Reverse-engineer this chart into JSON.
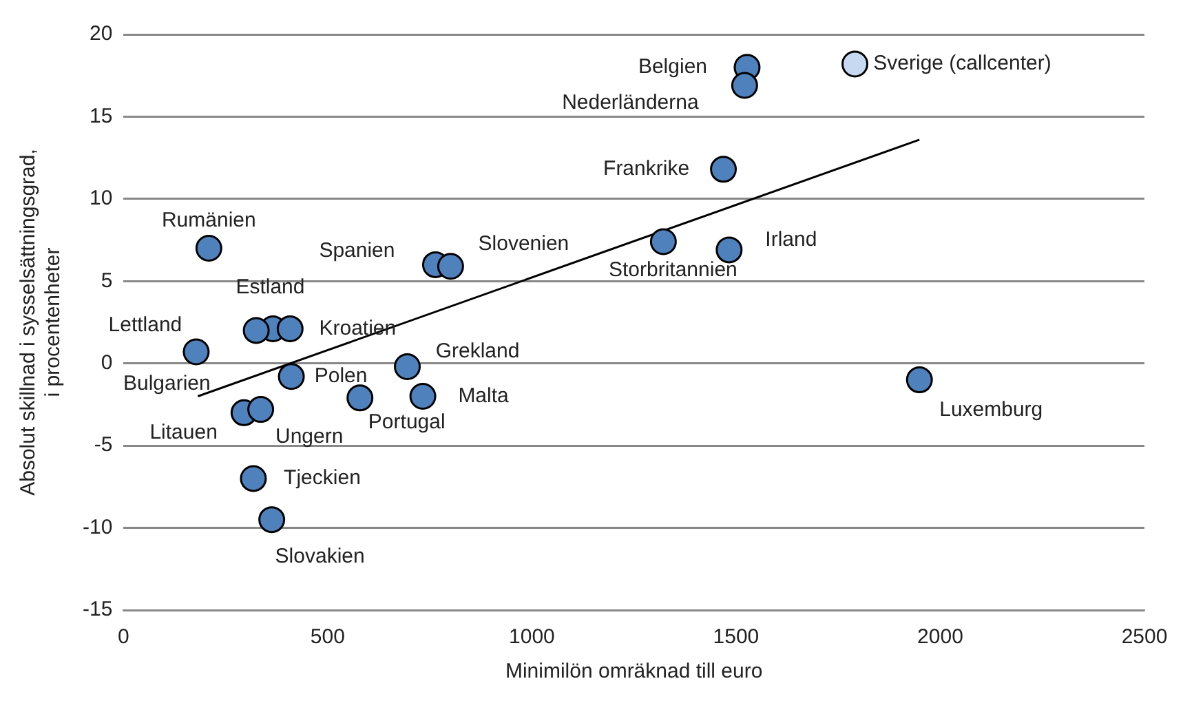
{
  "chart_data": {
    "type": "scatter",
    "xlabel": "Minimilön omräknad till euro",
    "ylabel": "Absolut skillnad i sysselsättningsgrad, i procentenheter",
    "xlim": [
      0,
      2500
    ],
    "xticks": [
      0,
      500,
      1000,
      1500,
      2000,
      2500
    ],
    "ylim": [
      -15,
      20
    ],
    "yticks": [
      -15,
      -10,
      -5,
      0,
      5,
      10,
      15,
      20
    ],
    "grid": "y",
    "marker": "circle",
    "series": [
      {
        "type": "scatter",
        "x": [
          1527,
          1521,
          1791,
          1469,
          1322,
          1483,
          1949,
          209,
          764,
          801,
          366,
          408,
          178,
          325,
          411,
          695,
          579,
          733,
          318,
          363,
          295,
          336
        ],
        "values": [
          18.0,
          16.9,
          18.2,
          11.8,
          7.4,
          6.9,
          -1.0,
          7.0,
          6.0,
          5.9,
          2.1,
          2.1,
          0.7,
          2.0,
          -0.8,
          -0.2,
          -2.1,
          -2.0,
          -7.0,
          -9.5,
          -3.0,
          -2.8
        ],
        "colors": [
          "#4f81bd",
          "#4f81bd",
          "#c6d9f1",
          "#4f81bd",
          "#4f81bd",
          "#4f81bd",
          "#4f81bd",
          "#4f81bd",
          "#4f81bd",
          "#4f81bd",
          "#4f81bd",
          "#4f81bd",
          "#4f81bd",
          "#4f81bd",
          "#4f81bd",
          "#4f81bd",
          "#4f81bd",
          "#4f81bd",
          "#4f81bd",
          "#4f81bd",
          "#4f81bd",
          "#4f81bd"
        ]
      },
      {
        "type": "line",
        "x": [
          182,
          1949
        ],
        "values": [
          -2.0,
          13.6
        ],
        "color": "#000000",
        "marker": "none",
        "line_style": "solid"
      }
    ],
    "annotations": [
      {
        "text": "Belgien",
        "x": 1527,
        "y": 18.0
      },
      {
        "text": "Nederländerna",
        "x": 1521,
        "y": 16.9
      },
      {
        "text": "Sverige (callcenter)",
        "x": 1791,
        "y": 18.2
      },
      {
        "text": "Frankrike",
        "x": 1469,
        "y": 11.8
      },
      {
        "text": "Storbritannien",
        "x": 1322,
        "y": 7.4
      },
      {
        "text": "Irland",
        "x": 1483,
        "y": 6.9
      },
      {
        "text": "Luxemburg",
        "x": 1949,
        "y": -1.0
      },
      {
        "text": "Rumänien",
        "x": 209,
        "y": 7.0
      },
      {
        "text": "Spanien",
        "x": 764,
        "y": 6.0
      },
      {
        "text": "Slovenien",
        "x": 801,
        "y": 5.9
      },
      {
        "text": "Estland",
        "x": 366,
        "y": 2.1
      },
      {
        "text": "Kroatien",
        "x": 408,
        "y": 2.1
      },
      {
        "text": "Lettland",
        "x": 178,
        "y": 0.7
      },
      {
        "text": "Bulgarien",
        "x": 295,
        "y": -3.0
      },
      {
        "text": "Polen",
        "x": 411,
        "y": -0.8
      },
      {
        "text": "Grekland",
        "x": 695,
        "y": -0.2
      },
      {
        "text": "Portugal",
        "x": 579,
        "y": -2.1
      },
      {
        "text": "Malta",
        "x": 733,
        "y": -2.0
      },
      {
        "text": "Tjeckien",
        "x": 318,
        "y": -7.0
      },
      {
        "text": "Slovakien",
        "x": 363,
        "y": -9.5
      },
      {
        "text": "Litauen",
        "x": 336,
        "y": -2.8
      },
      "Ungern"
    ]
  }
}
